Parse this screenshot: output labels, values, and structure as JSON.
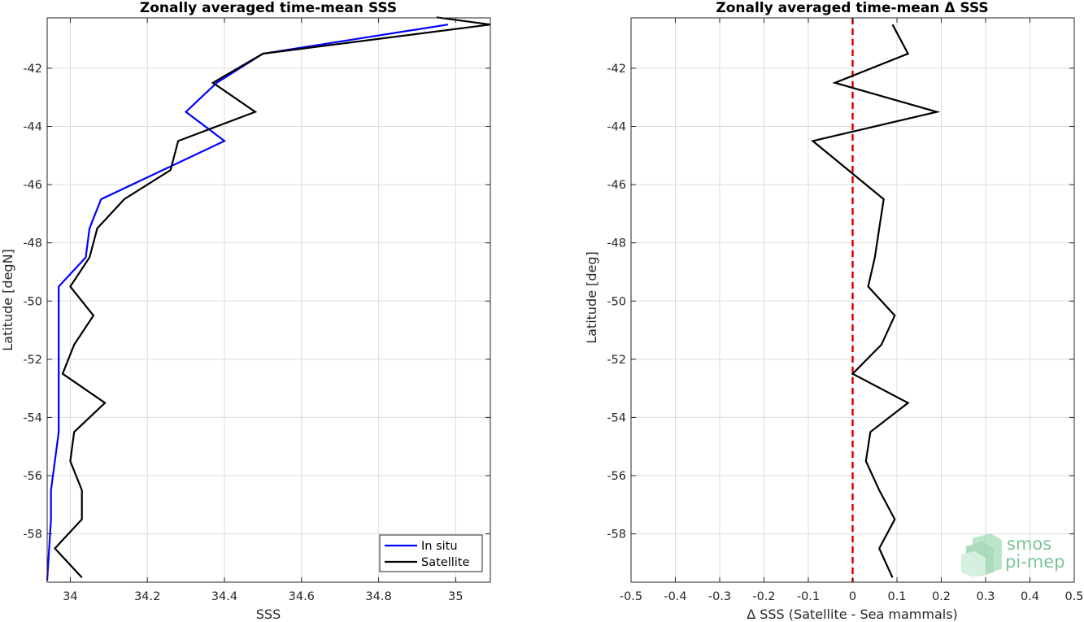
{
  "chart_data": [
    {
      "type": "line",
      "title": "Zonally averaged time-mean SSS",
      "xlabel": "SSS",
      "ylabel": "Latitude [degN]",
      "xlim": [
        33.94,
        35.09
      ],
      "ylim": [
        -59.66,
        -40.27
      ],
      "xticks": [
        34,
        34.2,
        34.4,
        34.6,
        34.8,
        35
      ],
      "xtick_labels": [
        "34",
        "34.2",
        "34.4",
        "34.6",
        "34.8",
        "35"
      ],
      "yticks": [
        -42,
        -44,
        -46,
        -48,
        -50,
        -52,
        -54,
        -56,
        -58
      ],
      "ytick_labels": [
        "-42",
        "-44",
        "-46",
        "-48",
        "-50",
        "-52",
        "-54",
        "-56",
        "-58"
      ],
      "grid": true,
      "legend_position": "bottom-right",
      "series": [
        {
          "name": "In situ",
          "color": "#0000ff",
          "x": [
            34.98,
            34.5,
            34.38,
            34.3,
            34.4,
            34.08,
            34.05,
            34.04,
            33.97,
            33.97,
            33.97,
            33.97,
            33.97,
            33.96,
            33.95,
            33.95,
            33.94
          ],
          "y": [
            -40.5,
            -41.5,
            -42.5,
            -43.5,
            -44.5,
            -46.5,
            -47.5,
            -48.5,
            -49.5,
            -50.5,
            -51.5,
            -53.5,
            -54.5,
            -55.5,
            -56.5,
            -57.5,
            -59.6
          ]
        },
        {
          "name": "Satellite",
          "color": "#000000",
          "x": [
            34.95,
            35.09,
            34.5,
            34.37,
            34.48,
            34.28,
            34.26,
            34.14,
            34.07,
            34.05,
            34.0,
            34.06,
            34.01,
            33.98,
            34.09,
            34.01,
            34.0,
            34.03,
            34.03,
            33.96,
            34.03
          ],
          "y": [
            -40.25,
            -40.5,
            -41.5,
            -42.5,
            -43.5,
            -44.5,
            -45.5,
            -46.5,
            -47.5,
            -48.5,
            -49.5,
            -50.5,
            -51.5,
            -52.5,
            -53.5,
            -54.5,
            -55.5,
            -56.5,
            -57.5,
            -58.5,
            -59.5
          ]
        }
      ]
    },
    {
      "type": "line",
      "title": "Zonally averaged time-mean Δ SSS",
      "xlabel": "Δ SSS (Satellite - Sea mammals)",
      "ylabel": "Latitude [deg]",
      "xlim": [
        -0.5,
        0.5
      ],
      "ylim": [
        -59.66,
        -40.27
      ],
      "xticks": [
        -0.5,
        -0.4,
        -0.3,
        -0.2,
        -0.1,
        0,
        0.1,
        0.2,
        0.3,
        0.4,
        0.5
      ],
      "xtick_labels": [
        "-0.5",
        "-0.4",
        "-0.3",
        "-0.2",
        "-0.1",
        "0",
        "0.1",
        "0.2",
        "0.3",
        "0.4",
        "0.5"
      ],
      "yticks": [
        -42,
        -44,
        -46,
        -48,
        -50,
        -52,
        -54,
        -56,
        -58
      ],
      "ytick_labels": [
        "-42",
        "-44",
        "-46",
        "-48",
        "-50",
        "-52",
        "-54",
        "-56",
        "-58"
      ],
      "grid": true,
      "reference_line": {
        "x": 0,
        "color": "#dd0000",
        "style": "dashed"
      },
      "series": [
        {
          "color": "#000000",
          "x": [
            0.09,
            0.125,
            -0.04,
            0.19,
            -0.09,
            0.07,
            0.06,
            0.05,
            0.035,
            0.095,
            0.065,
            0.0,
            0.125,
            0.04,
            0.03,
            0.06,
            0.095,
            0.06,
            0.09
          ],
          "y": [
            -40.5,
            -41.5,
            -42.5,
            -43.5,
            -44.5,
            -46.5,
            -47.5,
            -48.5,
            -49.5,
            -50.5,
            -51.5,
            -52.5,
            -53.5,
            -54.5,
            -55.5,
            -56.5,
            -57.5,
            -58.5,
            -59.5
          ]
        }
      ]
    }
  ],
  "logo": {
    "line1": "smos",
    "line2": "pi-mep",
    "color": "#7cc49a"
  }
}
